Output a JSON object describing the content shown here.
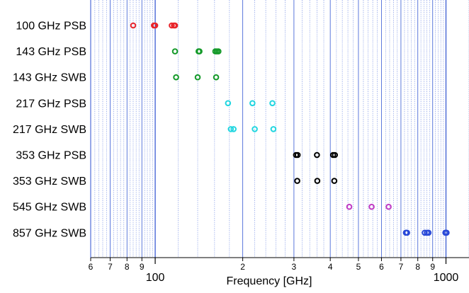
{
  "chart_data": {
    "type": "scatter",
    "title": "",
    "xlabel": "Frequency [GHz]",
    "ylabel": "",
    "xscale": "log",
    "xlim": [
      60,
      1200
    ],
    "grid": true,
    "legend": "none",
    "x_major_ticks": [
      {
        "value": 100,
        "label": "100"
      },
      {
        "value": 1000,
        "label": "1000"
      }
    ],
    "x_minor_ticks": [
      {
        "value": 60,
        "label": "6"
      },
      {
        "value": 70,
        "label": "7"
      },
      {
        "value": 80,
        "label": "8"
      },
      {
        "value": 90,
        "label": "9"
      },
      {
        "value": 200,
        "label": "2"
      },
      {
        "value": 300,
        "label": "3"
      },
      {
        "value": 400,
        "label": "4"
      },
      {
        "value": 500,
        "label": "5"
      },
      {
        "value": 600,
        "label": "6"
      },
      {
        "value": 700,
        "label": "7"
      },
      {
        "value": 800,
        "label": "8"
      },
      {
        "value": 900,
        "label": "9"
      }
    ],
    "categories": [
      "100 GHz PSB",
      "143 GHz PSB",
      "143 GHz SWB",
      "217 GHz PSB",
      "217 GHz SWB",
      "353 GHz PSB",
      "353 GHz SWB",
      "545 GHz SWB",
      "857 GHz SWB"
    ],
    "series": [
      {
        "category": "100 GHz PSB",
        "color": "#e8242b",
        "x": [
          84,
          99,
          100,
          114,
          116,
          117
        ]
      },
      {
        "category": "143 GHz PSB",
        "color": "#159a2a",
        "x": [
          117,
          141,
          142,
          161,
          163,
          165
        ]
      },
      {
        "category": "143 GHz SWB",
        "color": "#159a2a",
        "x": [
          118,
          140,
          162
        ]
      },
      {
        "category": "217 GHz PSB",
        "color": "#22d6e0",
        "x": [
          178,
          216,
          253
        ]
      },
      {
        "category": "217 GHz SWB",
        "color": "#22d6e0",
        "x": [
          182,
          186,
          220,
          255
        ]
      },
      {
        "category": "353 GHz PSB",
        "color": "#000000",
        "x": [
          305,
          309,
          360,
          409,
          415
        ]
      },
      {
        "category": "353 GHz SWB",
        "color": "#000000",
        "x": [
          308,
          361,
          413
        ]
      },
      {
        "category": "545 GHz SWB",
        "color": "#c03bc4",
        "x": [
          465,
          555,
          635
        ]
      },
      {
        "category": "857 GHz SWB",
        "color": "#2848d8",
        "x": [
          728,
          735,
          845,
          860,
          871,
          995,
          1005
        ]
      }
    ]
  }
}
